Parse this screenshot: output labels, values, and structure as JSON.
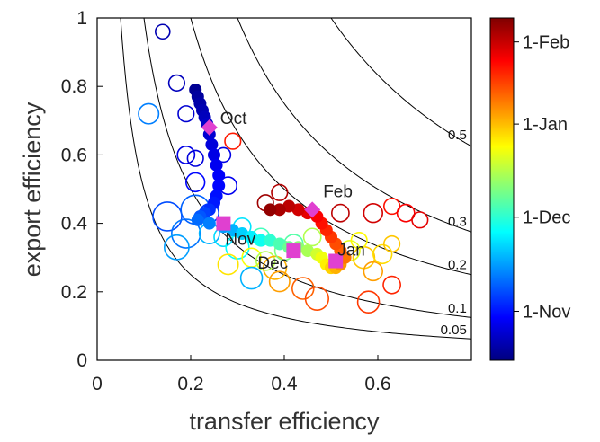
{
  "chart_data": {
    "type": "scatter",
    "title": "",
    "xlabel": "transfer efficiency",
    "ylabel": "export efficiency",
    "xlim": [
      0,
      0.8
    ],
    "ylim": [
      0,
      1
    ],
    "xticks": [
      0,
      0.2,
      0.4,
      0.6
    ],
    "xtick_labels": [
      "0",
      "0.2",
      "0.4",
      "0.6"
    ],
    "yticks": [
      0,
      0.2,
      0.4,
      0.6,
      0.8,
      1
    ],
    "ytick_labels": [
      "0",
      "0.2",
      "0.4",
      "0.6",
      "0.8",
      "1"
    ],
    "grid": false,
    "isolines": [
      {
        "label": "0.05",
        "value": 0.05
      },
      {
        "label": "0.1",
        "value": 0.1
      },
      {
        "label": "0.2",
        "value": 0.2
      },
      {
        "label": "0.3",
        "value": 0.3
      },
      {
        "label": "0.5",
        "value": 0.5
      }
    ],
    "colorbar": {
      "colors": [
        "#00007f",
        "#0000ff",
        "#007fff",
        "#00ffff",
        "#7fff7f",
        "#ffff00",
        "#ff7f00",
        "#ff0000",
        "#7f0000"
      ],
      "ticks": [
        {
          "label": "1-Nov",
          "fraction": 0.143
        },
        {
          "label": "1-Dec",
          "fraction": 0.418
        },
        {
          "label": "1-Jan",
          "fraction": 0.69
        },
        {
          "label": "1-Feb",
          "fraction": 0.93
        }
      ]
    },
    "month_markers": [
      {
        "label": "Oct",
        "x": 0.24,
        "y": 0.68,
        "color": "#e040d0"
      },
      {
        "label": "Nov",
        "x": 0.27,
        "y": 0.4,
        "color": "#e040d0"
      },
      {
        "label": "Dec",
        "x": 0.42,
        "y": 0.32,
        "color": "#e040d0"
      },
      {
        "label": "Jan",
        "x": 0.51,
        "y": 0.29,
        "color": "#e040d0"
      },
      {
        "label": "Feb",
        "x": 0.46,
        "y": 0.44,
        "color": "#e040d0"
      }
    ],
    "filled_points": [
      {
        "x": 0.21,
        "y": 0.79,
        "t": 0.02
      },
      {
        "x": 0.215,
        "y": 0.77,
        "t": 0.03
      },
      {
        "x": 0.22,
        "y": 0.75,
        "t": 0.04
      },
      {
        "x": 0.225,
        "y": 0.73,
        "t": 0.05
      },
      {
        "x": 0.23,
        "y": 0.71,
        "t": 0.06
      },
      {
        "x": 0.235,
        "y": 0.69,
        "t": 0.07
      },
      {
        "x": 0.24,
        "y": 0.66,
        "t": 0.08
      },
      {
        "x": 0.245,
        "y": 0.63,
        "t": 0.09
      },
      {
        "x": 0.25,
        "y": 0.6,
        "t": 0.1
      },
      {
        "x": 0.255,
        "y": 0.57,
        "t": 0.11
      },
      {
        "x": 0.26,
        "y": 0.54,
        "t": 0.12
      },
      {
        "x": 0.26,
        "y": 0.51,
        "t": 0.13
      },
      {
        "x": 0.255,
        "y": 0.48,
        "t": 0.14
      },
      {
        "x": 0.25,
        "y": 0.46,
        "t": 0.15
      },
      {
        "x": 0.24,
        "y": 0.44,
        "t": 0.17
      },
      {
        "x": 0.23,
        "y": 0.43,
        "t": 0.19
      },
      {
        "x": 0.22,
        "y": 0.42,
        "t": 0.21
      },
      {
        "x": 0.215,
        "y": 0.41,
        "t": 0.23
      },
      {
        "x": 0.24,
        "y": 0.4,
        "t": 0.25
      },
      {
        "x": 0.27,
        "y": 0.39,
        "t": 0.28
      },
      {
        "x": 0.29,
        "y": 0.38,
        "t": 0.3
      },
      {
        "x": 0.31,
        "y": 0.37,
        "t": 0.33
      },
      {
        "x": 0.33,
        "y": 0.36,
        "t": 0.36
      },
      {
        "x": 0.35,
        "y": 0.35,
        "t": 0.39
      },
      {
        "x": 0.37,
        "y": 0.35,
        "t": 0.42
      },
      {
        "x": 0.39,
        "y": 0.34,
        "t": 0.45
      },
      {
        "x": 0.41,
        "y": 0.33,
        "t": 0.48
      },
      {
        "x": 0.43,
        "y": 0.33,
        "t": 0.51
      },
      {
        "x": 0.45,
        "y": 0.32,
        "t": 0.54
      },
      {
        "x": 0.47,
        "y": 0.31,
        "t": 0.58
      },
      {
        "x": 0.48,
        "y": 0.3,
        "t": 0.61
      },
      {
        "x": 0.49,
        "y": 0.28,
        "t": 0.64
      },
      {
        "x": 0.5,
        "y": 0.27,
        "t": 0.67
      },
      {
        "x": 0.51,
        "y": 0.27,
        "t": 0.7
      },
      {
        "x": 0.52,
        "y": 0.28,
        "t": 0.73
      },
      {
        "x": 0.53,
        "y": 0.3,
        "t": 0.76
      },
      {
        "x": 0.52,
        "y": 0.32,
        "t": 0.78
      },
      {
        "x": 0.51,
        "y": 0.34,
        "t": 0.8
      },
      {
        "x": 0.5,
        "y": 0.36,
        "t": 0.82
      },
      {
        "x": 0.49,
        "y": 0.38,
        "t": 0.84
      },
      {
        "x": 0.48,
        "y": 0.4,
        "t": 0.86
      },
      {
        "x": 0.47,
        "y": 0.42,
        "t": 0.88
      },
      {
        "x": 0.45,
        "y": 0.43,
        "t": 0.9
      },
      {
        "x": 0.43,
        "y": 0.44,
        "t": 0.92
      },
      {
        "x": 0.41,
        "y": 0.45,
        "t": 0.94
      },
      {
        "x": 0.39,
        "y": 0.44,
        "t": 0.96
      },
      {
        "x": 0.37,
        "y": 0.44,
        "t": 0.98
      }
    ],
    "open_points": [
      {
        "x": 0.14,
        "y": 0.96,
        "t": 0.05,
        "s": 1.0
      },
      {
        "x": 0.17,
        "y": 0.81,
        "t": 0.06,
        "s": 1.1
      },
      {
        "x": 0.11,
        "y": 0.72,
        "t": 0.25,
        "s": 1.4
      },
      {
        "x": 0.19,
        "y": 0.72,
        "t": 0.08,
        "s": 1.1
      },
      {
        "x": 0.19,
        "y": 0.6,
        "t": 0.1,
        "s": 1.2
      },
      {
        "x": 0.21,
        "y": 0.59,
        "t": 0.09,
        "s": 1.1
      },
      {
        "x": 0.27,
        "y": 0.6,
        "t": 0.1,
        "s": 1.0
      },
      {
        "x": 0.29,
        "y": 0.64,
        "t": 0.85,
        "s": 1.1
      },
      {
        "x": 0.21,
        "y": 0.52,
        "t": 0.13,
        "s": 1.3
      },
      {
        "x": 0.28,
        "y": 0.51,
        "t": 0.11,
        "s": 1.2
      },
      {
        "x": 0.15,
        "y": 0.42,
        "t": 0.2,
        "s": 2.0
      },
      {
        "x": 0.19,
        "y": 0.37,
        "t": 0.24,
        "s": 2.0
      },
      {
        "x": 0.21,
        "y": 0.44,
        "t": 0.22,
        "s": 2.0
      },
      {
        "x": 0.17,
        "y": 0.33,
        "t": 0.28,
        "s": 1.7
      },
      {
        "x": 0.24,
        "y": 0.43,
        "t": 0.18,
        "s": 1.3
      },
      {
        "x": 0.24,
        "y": 0.37,
        "t": 0.3,
        "s": 1.4
      },
      {
        "x": 0.27,
        "y": 0.36,
        "t": 0.34,
        "s": 1.3
      },
      {
        "x": 0.3,
        "y": 0.33,
        "t": 0.38,
        "s": 1.6
      },
      {
        "x": 0.31,
        "y": 0.39,
        "t": 0.35,
        "s": 1.2
      },
      {
        "x": 0.33,
        "y": 0.3,
        "t": 0.62,
        "s": 1.3
      },
      {
        "x": 0.28,
        "y": 0.28,
        "t": 0.65,
        "s": 1.4
      },
      {
        "x": 0.33,
        "y": 0.24,
        "t": 0.3,
        "s": 1.5
      },
      {
        "x": 0.36,
        "y": 0.29,
        "t": 0.55,
        "s": 1.3
      },
      {
        "x": 0.38,
        "y": 0.27,
        "t": 0.7,
        "s": 1.6
      },
      {
        "x": 0.4,
        "y": 0.32,
        "t": 0.5,
        "s": 1.3
      },
      {
        "x": 0.42,
        "y": 0.34,
        "t": 0.46,
        "s": 1.3
      },
      {
        "x": 0.39,
        "y": 0.23,
        "t": 0.72,
        "s": 1.4
      },
      {
        "x": 0.44,
        "y": 0.21,
        "t": 0.78,
        "s": 1.5
      },
      {
        "x": 0.47,
        "y": 0.18,
        "t": 0.8,
        "s": 1.6
      },
      {
        "x": 0.54,
        "y": 0.32,
        "t": 0.6,
        "s": 1.4
      },
      {
        "x": 0.57,
        "y": 0.3,
        "t": 0.68,
        "s": 1.5
      },
      {
        "x": 0.59,
        "y": 0.26,
        "t": 0.72,
        "s": 1.3
      },
      {
        "x": 0.61,
        "y": 0.31,
        "t": 0.66,
        "s": 1.3
      },
      {
        "x": 0.63,
        "y": 0.34,
        "t": 0.68,
        "s": 1.1
      },
      {
        "x": 0.58,
        "y": 0.17,
        "t": 0.82,
        "s": 1.5
      },
      {
        "x": 0.63,
        "y": 0.22,
        "t": 0.84,
        "s": 1.2
      },
      {
        "x": 0.63,
        "y": 0.45,
        "t": 0.86,
        "s": 1.1
      },
      {
        "x": 0.66,
        "y": 0.43,
        "t": 0.88,
        "s": 1.2
      },
      {
        "x": 0.69,
        "y": 0.41,
        "t": 0.9,
        "s": 1.1
      },
      {
        "x": 0.59,
        "y": 0.43,
        "t": 0.92,
        "s": 1.3
      },
      {
        "x": 0.52,
        "y": 0.43,
        "t": 0.94,
        "s": 1.2
      },
      {
        "x": 0.39,
        "y": 0.49,
        "t": 0.95,
        "s": 1.1
      },
      {
        "x": 0.36,
        "y": 0.46,
        "t": 0.97,
        "s": 1.1
      },
      {
        "x": 0.46,
        "y": 0.36,
        "t": 0.55,
        "s": 1.2
      },
      {
        "x": 0.56,
        "y": 0.35,
        "t": 0.63,
        "s": 1.1
      },
      {
        "x": 0.35,
        "y": 0.36,
        "t": 0.44,
        "s": 1.2
      }
    ]
  }
}
